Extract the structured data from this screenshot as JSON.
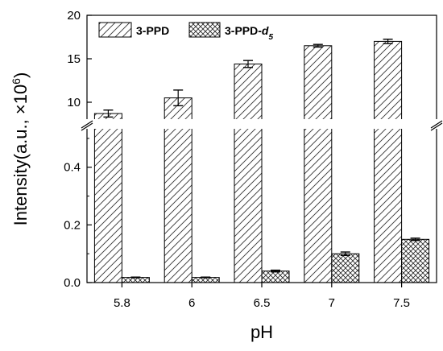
{
  "chart_data": {
    "type": "bar",
    "xlabel": "pH",
    "ylabel": "Intensity(a.u., ×10",
    "ylabel_exponent": "6",
    "ylabel_close": ")",
    "categories": [
      "5.8",
      "6",
      "6.5",
      "7",
      "7.5"
    ],
    "axis_break": true,
    "ylim_lower": [
      0,
      0.55
    ],
    "ylim_upper": [
      7.5,
      20
    ],
    "yticks_lower": [
      "0.0",
      "0.2",
      "0.4"
    ],
    "yticks_upper": [
      "10",
      "15",
      "20"
    ],
    "legend_position": "top-left",
    "series": [
      {
        "name": "3-PPD",
        "pattern": "diagonal-hatch",
        "values": [
          8.7,
          10.5,
          14.4,
          16.5,
          17.0
        ],
        "errors": [
          0.4,
          0.9,
          0.4,
          0.15,
          0.25
        ]
      },
      {
        "name": "3-PPD-",
        "name_suffix_italic": "d",
        "name_subscript": "5",
        "pattern": "crosshatch",
        "values": [
          0.018,
          0.018,
          0.04,
          0.1,
          0.15
        ],
        "errors": [
          0.001,
          0.001,
          0.003,
          0.006,
          0.004
        ]
      }
    ]
  }
}
